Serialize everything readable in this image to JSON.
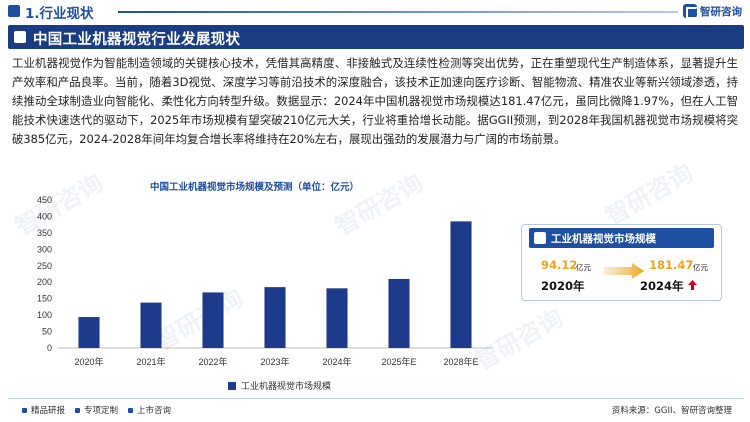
{
  "header": {
    "section_title": "1.行业现状",
    "logo_text": "智研咨询"
  },
  "banner": {
    "title": "中国工业机器视觉行业发展现状"
  },
  "paragraph": "工业机器视觉作为智能制造领域的关键核心技术，凭借其高精度、非接触式及连续性检测等突出优势，正在重塑现代生产制造体系，显著提升生产效率和产品良率。当前，随着3D视觉、深度学习等前沿技术的深度融合，该技术正加速向医疗诊断、智能物流、精准农业等新兴领域渗透，持续推动全球制造业向智能化、柔性化方向转型升级。数据显示：2024年中国机器视觉市场规模达181.47亿元，虽同比微降1.97%，但在人工智能技术快速迭代的驱动下，2025年市场规模有望突破210亿元大关，行业将重拾增长动能。据GGII预测，到2028年我国机器视觉市场规模将突破385亿元，2024-2028年间年均复合增长率将维持在20%左右，展现出强劲的发展潜力与广阔的市场前景。",
  "card": {
    "title": "工业机器视觉市场规模",
    "left_value": "94.12",
    "left_unit": "亿元",
    "left_year": "2020年",
    "right_value": "181.47",
    "right_unit": "亿元",
    "right_year": "2024年"
  },
  "footer": {
    "items": [
      "精品研报",
      "专项定制",
      "上市咨询"
    ],
    "source": "资料来源：GGII、智研咨询整理"
  },
  "watermark": "智研咨询",
  "colors": {
    "primary": "#1f4fa0",
    "bar": "#1e3a8a",
    "highlight": "#f0a31a",
    "arrow_up": "#d0021b"
  },
  "chart_data": {
    "type": "bar",
    "title": "中国工业机器视觉市场规模及预测（单位：亿元）",
    "categories": [
      "2020年",
      "2021年",
      "2022年",
      "2023年",
      "2024年",
      "2025年E",
      "2028年E"
    ],
    "series": [
      {
        "name": "工业机器视觉市场规模",
        "values": [
          94.12,
          138,
          169,
          185.1,
          181.47,
          210,
          385
        ]
      }
    ],
    "ylim": [
      0,
      450
    ],
    "yticks": [
      0,
      50,
      100,
      150,
      200,
      250,
      300,
      350,
      400,
      450
    ],
    "grid": false,
    "legend": "bottom"
  }
}
